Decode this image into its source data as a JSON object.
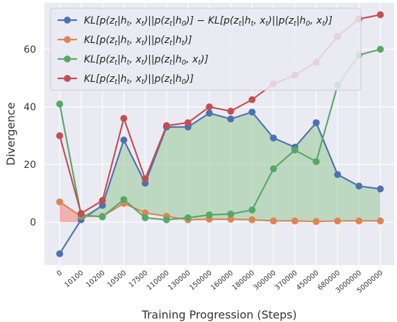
{
  "chart_data": {
    "type": "line",
    "xlabel": "Training Progression (Steps)",
    "ylabel": "Divergence",
    "title": "",
    "x_categories": [
      "0",
      "10100",
      "10200",
      "10500",
      "17500",
      "110000",
      "130000",
      "150000",
      "160000",
      "180000",
      "300000",
      "370000",
      "450000",
      "680000",
      "3000000",
      "5000000"
    ],
    "ylim": [
      -15,
      75
    ],
    "yticks": [
      0,
      20,
      40,
      60
    ],
    "grid": true,
    "legend_position": "top-right",
    "series": [
      {
        "name": "KL[p(z_t|h_t,x_t)||p(z_t|h_0)] − KL[p(z_t|h_t,x_t)||p(z_t|h_0,x_t)]",
        "color": "#4c72b0",
        "values": [
          -11,
          0.8,
          5.8,
          28.5,
          13.5,
          33,
          33,
          37.8,
          35.8,
          38.2,
          29.2,
          26,
          34.5,
          16.5,
          12.5,
          11.5
        ]
      },
      {
        "name": "KL[p(z_t|h_t,x_t)||p(z_t|h_t)]",
        "color": "#dd8452",
        "values": [
          7,
          2,
          2,
          6.5,
          3.2,
          2,
          0.8,
          1,
          1,
          0.8,
          0.4,
          0.4,
          0.2,
          0.4,
          0.4,
          0.4
        ]
      },
      {
        "name": "KL[p(z_t|h_t,x_t)||p(z_t|h_0,x_t)]",
        "color": "#55a868",
        "values": [
          41,
          2.5,
          1.8,
          7.8,
          1.5,
          0.8,
          1.5,
          2.5,
          2.8,
          4.2,
          18.5,
          25,
          21,
          47.5,
          58,
          60
        ]
      },
      {
        "name": "KL[p(z_t|h_t,x_t)||p(z_t|h_0)]",
        "color": "#c44e52",
        "values": [
          30,
          3,
          7.5,
          36,
          15,
          33.5,
          34.5,
          40,
          38.5,
          42.5,
          48,
          51,
          55.5,
          64.5,
          70.5,
          72
        ]
      }
    ],
    "legend": [
      {
        "prefix": "KL[p(z",
        "sub1": "t",
        "mid1": "|h",
        "sub2": "t",
        "mid2": ", x",
        "sub3": "t",
        "mid3": ")||p(z",
        "sub4": "t",
        "mid4": "|h",
        "sub5": "0",
        "mid5": ")] − KL[p(z",
        "sub6": "t",
        "mid6": "|h",
        "sub7": "t",
        "mid7": ", x",
        "sub8": "t",
        "mid8": ")||p(z",
        "sub9": "t",
        "mid9": "|h",
        "sub10": "0",
        "mid10": ", x",
        "sub11": "t",
        "end": ")]"
      }
    ]
  },
  "legend_labels": [
    [
      "KL[p(z",
      "t",
      "|h",
      "t",
      ", x",
      "t",
      ")||p(z",
      "t",
      "|h",
      "0",
      ")] − KL[p(z",
      "t",
      "|h",
      "t",
      ", x",
      "t",
      ")||p(z",
      "t",
      "|h",
      "0",
      ", x",
      "t",
      ")]"
    ],
    [
      "KL[p(z",
      "t",
      "|h",
      "t",
      ", x",
      "t",
      ")||p(z",
      "t",
      "|h",
      "t",
      ")]"
    ],
    [
      "KL[p(z",
      "t",
      "|h",
      "t",
      ", x",
      "t",
      ")||p(z",
      "t",
      "|h",
      "0",
      ", x",
      "t",
      ")]"
    ],
    [
      "KL[p(z",
      "t",
      "|h",
      "t",
      ", x",
      "t",
      ")||p(z",
      "t",
      "|h",
      "0",
      ")]"
    ]
  ]
}
